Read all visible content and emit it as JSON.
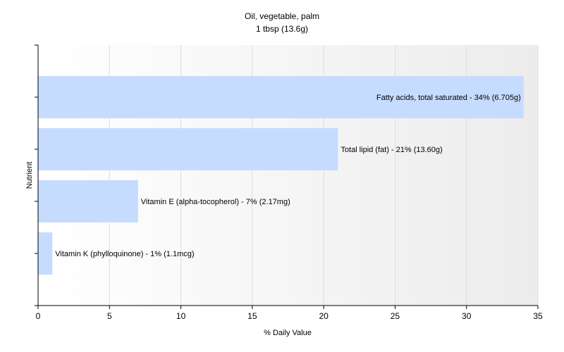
{
  "chart_data": {
    "type": "bar",
    "orientation": "horizontal",
    "title": "Oil, vegetable, palm",
    "subtitle": "1 tbsp (13.6g)",
    "xlabel": "% Daily Value",
    "ylabel": "Nutrient",
    "xlim": [
      0,
      35
    ],
    "xticks": [
      "0",
      "5",
      "10",
      "15",
      "20",
      "25",
      "30",
      "35"
    ],
    "grid": true,
    "bar_color": "#c6dcff",
    "categories": [
      "Fatty acids, total saturated",
      "Total lipid (fat)",
      "Vitamin E (alpha-tocopherol)",
      "Vitamin K (phylloquinone)"
    ],
    "values": [
      34,
      21,
      7,
      1
    ],
    "data_labels": [
      "Fatty acids, total saturated - 34% (6.705g)",
      "Total lipid (fat) - 21% (13.60g)",
      "Vitamin E (alpha-tocopherol) - 7% (2.17mg)",
      "Vitamin K (phylloquinone) - 1% (1.1mcg)"
    ]
  }
}
